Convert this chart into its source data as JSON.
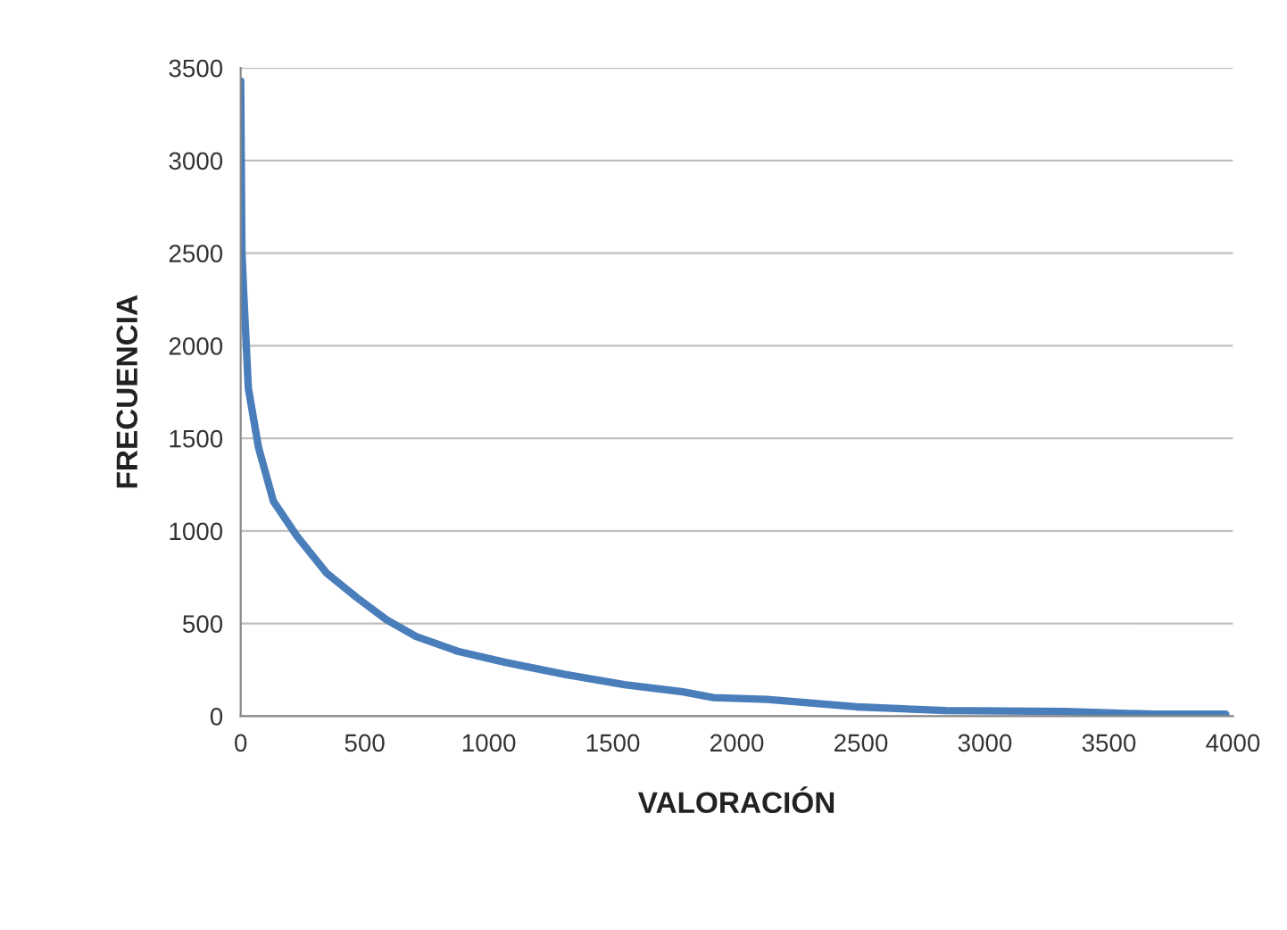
{
  "chart_data": {
    "type": "line",
    "xlabel": "VALORACIÓN",
    "ylabel": "FRECUENCIA",
    "x": [
      0,
      5,
      12,
      31,
      72,
      132,
      228,
      348,
      468,
      588,
      707,
      875,
      1067,
      1307,
      1547,
      1787,
      1906,
      2122,
      2482,
      2842,
      3324,
      3683,
      3971
    ],
    "series": [
      {
        "color": "#4a7ebb",
        "values": [
          3430,
          2510,
          2290,
          1770,
          1450,
          1160,
          970,
          770,
          640,
          520,
          430,
          350,
          290,
          225,
          170,
          130,
          100,
          90,
          50,
          30,
          25,
          10,
          10
        ]
      }
    ],
    "xlim": [
      0,
      4000
    ],
    "xticks": [
      0,
      500,
      1000,
      1500,
      2000,
      2500,
      3000,
      3500,
      4000
    ],
    "ylim": [
      0,
      3500
    ],
    "yticks": [
      0,
      500,
      1000,
      1500,
      2000,
      2500,
      3000,
      3500
    ],
    "grid": "y",
    "marker": "none",
    "line_style": "solid"
  }
}
